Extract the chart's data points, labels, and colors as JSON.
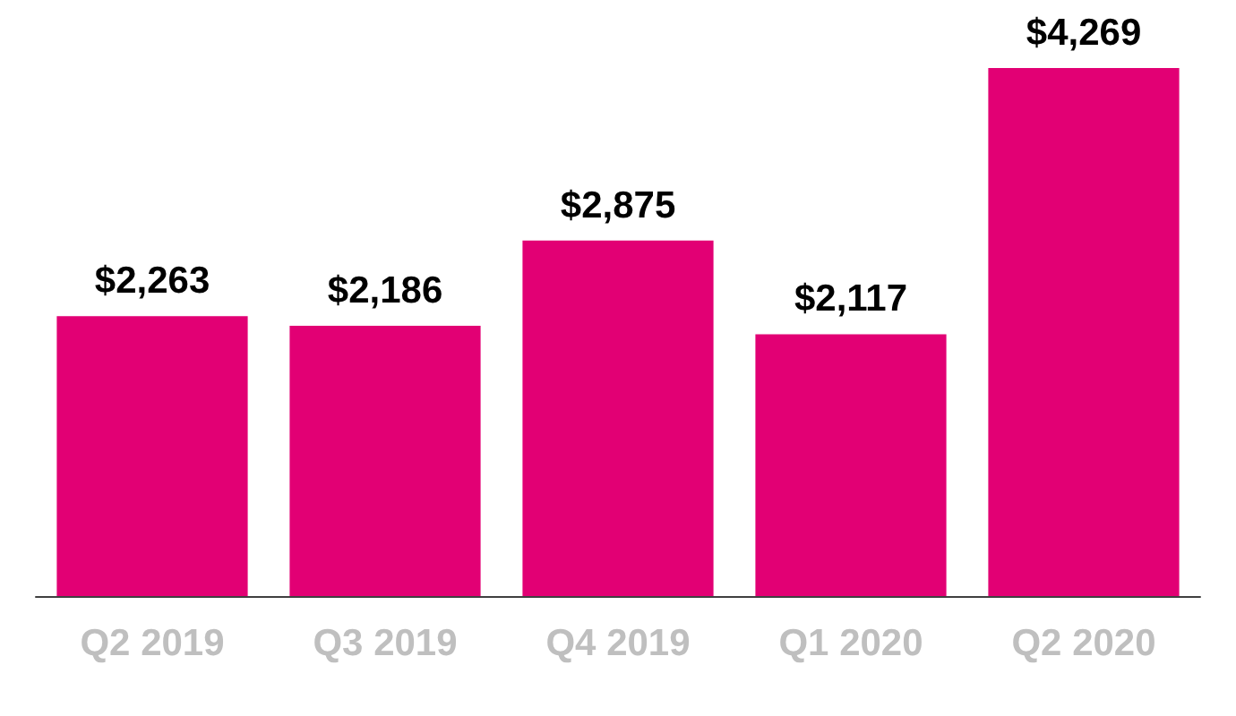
{
  "chart_data": {
    "type": "bar",
    "categories": [
      "Q2 2019",
      "Q3 2019",
      "Q4 2019",
      "Q1 2020",
      "Q2 2020"
    ],
    "values": [
      2263,
      2186,
      2875,
      2117,
      4269
    ],
    "value_labels": [
      "$2,263",
      "$2,186",
      "$2,875",
      "$2,117",
      "$4,269"
    ],
    "color": "#e20074"
  }
}
